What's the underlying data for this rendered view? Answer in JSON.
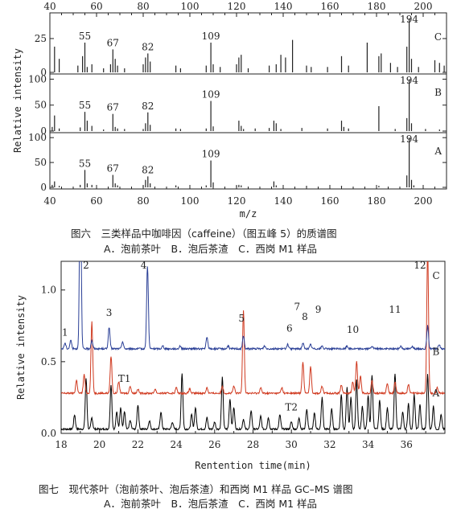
{
  "figure6": {
    "caption_line1": "图六　三类样品中咖啡因（caffeine）（图五峰 5）的质谱图",
    "caption_line2": "A．泡前茶叶　B．泡后茶渣　C．西岗 M1 样品",
    "chart_data": {
      "type": "bar",
      "title": "",
      "xlabel": "m/z",
      "ylabel": "Relative intensity",
      "xlim": [
        40,
        210
      ],
      "x_ticks": [
        "40",
        "60",
        "80",
        "100",
        "120",
        "140",
        "160",
        "180",
        "200"
      ],
      "panels": [
        {
          "name": "C",
          "ylim": [
            0,
            44
          ],
          "y_ticks": [
            "0",
            "25"
          ],
          "peaks": [
            [
              42,
              19
            ],
            [
              44,
              10
            ],
            [
              52,
              5
            ],
            [
              54,
              12
            ],
            [
              55,
              22
            ],
            [
              56,
              4
            ],
            [
              58,
              6
            ],
            [
              63,
              3
            ],
            [
              66,
              6
            ],
            [
              67,
              17
            ],
            [
              68,
              10
            ],
            [
              69,
              5
            ],
            [
              72,
              3
            ],
            [
              80,
              6
            ],
            [
              81,
              11
            ],
            [
              82,
              14
            ],
            [
              83,
              8
            ],
            [
              94,
              5
            ],
            [
              96,
              3
            ],
            [
              107,
              5
            ],
            [
              109,
              22
            ],
            [
              110,
              6
            ],
            [
              113,
              4
            ],
            [
              120,
              6
            ],
            [
              121,
              11
            ],
            [
              122,
              13
            ],
            [
              125,
              3
            ],
            [
              134,
              5
            ],
            [
              137,
              6
            ],
            [
              139,
              13
            ],
            [
              141,
              11
            ],
            [
              144,
              24
            ],
            [
              150,
              5
            ],
            [
              152,
              4
            ],
            [
              159,
              4
            ],
            [
              165,
              12
            ],
            [
              168,
              5
            ],
            [
              176,
              22
            ],
            [
              181,
              12
            ],
            [
              182,
              14
            ],
            [
              186,
              7
            ],
            [
              189,
              4
            ],
            [
              193,
              19
            ],
            [
              194,
              40
            ],
            [
              195,
              10
            ],
            [
              198,
              4
            ],
            [
              205,
              9
            ],
            [
              207,
              7
            ],
            [
              209,
              5
            ]
          ],
          "peak_labels": [
            {
              "x": 55,
              "text": "55"
            },
            {
              "x": 67,
              "text": "67"
            },
            {
              "x": 82,
              "text": "82"
            },
            {
              "x": 109,
              "text": "109"
            },
            {
              "x": 194,
              "text": "194"
            }
          ]
        },
        {
          "name": "B",
          "ylim": [
            0,
            110
          ],
          "y_ticks": [
            "0",
            "50",
            "100"
          ],
          "peaks": [
            [
              41,
              8
            ],
            [
              42,
              30
            ],
            [
              44,
              5
            ],
            [
              53,
              7
            ],
            [
              55,
              37
            ],
            [
              56,
              20
            ],
            [
              58,
              10
            ],
            [
              63,
              3
            ],
            [
              67,
              33
            ],
            [
              68,
              8
            ],
            [
              69,
              5
            ],
            [
              72,
              4
            ],
            [
              80,
              4
            ],
            [
              81,
              15
            ],
            [
              82,
              36
            ],
            [
              83,
              12
            ],
            [
              94,
              5
            ],
            [
              96,
              4
            ],
            [
              107,
              5
            ],
            [
              109,
              58
            ],
            [
              110,
              9
            ],
            [
              121,
              20
            ],
            [
              122,
              10
            ],
            [
              123,
              4
            ],
            [
              128,
              5
            ],
            [
              134,
              6
            ],
            [
              136,
              20
            ],
            [
              137,
              15
            ],
            [
              139,
              4
            ],
            [
              148,
              6
            ],
            [
              159,
              5
            ],
            [
              165,
              20
            ],
            [
              166,
              8
            ],
            [
              168,
              5
            ],
            [
              181,
              48
            ],
            [
              188,
              4
            ],
            [
              193,
              25
            ],
            [
              194,
              100
            ],
            [
              195,
              15
            ],
            [
              201,
              4
            ],
            [
              207,
              3
            ]
          ],
          "peak_labels": [
            {
              "x": 55,
              "text": "55"
            },
            {
              "x": 67,
              "text": "67"
            },
            {
              "x": 82,
              "text": "82"
            },
            {
              "x": 109,
              "text": "109"
            },
            {
              "x": 194,
              "text": "194"
            }
          ]
        },
        {
          "name": "A",
          "ylim": [
            0,
            110
          ],
          "y_ticks": [
            "0",
            "50",
            "100"
          ],
          "peaks": [
            [
              41,
              5
            ],
            [
              42,
              12
            ],
            [
              44,
              3
            ],
            [
              53,
              5
            ],
            [
              55,
              35
            ],
            [
              56,
              8
            ],
            [
              58,
              5
            ],
            [
              67,
              25
            ],
            [
              68,
              8
            ],
            [
              69,
              4
            ],
            [
              80,
              4
            ],
            [
              81,
              15
            ],
            [
              82,
              22
            ],
            [
              83,
              8
            ],
            [
              94,
              4
            ],
            [
              107,
              4
            ],
            [
              109,
              54
            ],
            [
              110,
              10
            ],
            [
              120,
              3
            ],
            [
              121,
              5
            ],
            [
              122,
              4
            ],
            [
              136,
              12
            ],
            [
              137,
              4
            ],
            [
              150,
              3
            ],
            [
              165,
              3
            ],
            [
              181,
              3
            ],
            [
              193,
              24
            ],
            [
              194,
              100
            ],
            [
              195,
              15
            ],
            [
              196,
              4
            ]
          ],
          "peak_labels": [
            {
              "x": 55,
              "text": "55"
            },
            {
              "x": 67,
              "text": "67"
            },
            {
              "x": 82,
              "text": "82"
            },
            {
              "x": 109,
              "text": "109"
            },
            {
              "x": 194,
              "text": "194"
            }
          ]
        }
      ]
    }
  },
  "figure7": {
    "caption_line1": "图七　现代茶叶（泡前茶叶、泡后茶渣）和西岗 M1 样品 GC–MS 谱图",
    "caption_line2": "A．泡前茶叶　B．泡后茶渣　C．西岗 M1 样品",
    "chart_data": {
      "type": "line",
      "title": "",
      "xlabel": "Rentention time(min)",
      "ylabel": "Relative intensity",
      "xlim": [
        18,
        38
      ],
      "ylim": [
        0,
        1.2
      ],
      "x_ticks": [
        "18",
        "20",
        "22",
        "24",
        "26",
        "28",
        "30",
        "32",
        "34",
        "36"
      ],
      "y_ticks": [
        "0.0",
        "0.5",
        "1.0"
      ],
      "series": [
        {
          "name": "A",
          "color": "#000000",
          "baseline": 0.03,
          "peaks": [
            [
              18.7,
              0.1
            ],
            [
              19.3,
              0.35
            ],
            [
              19.6,
              0.08
            ],
            [
              20.6,
              0.31
            ],
            [
              20.9,
              0.12
            ],
            [
              21.1,
              0.15
            ],
            [
              21.3,
              0.12
            ],
            [
              21.6,
              0.06
            ],
            [
              22.0,
              0.17
            ],
            [
              22.6,
              0.06
            ],
            [
              23.2,
              0.12
            ],
            [
              23.8,
              0.05
            ],
            [
              24.3,
              0.39
            ],
            [
              24.8,
              0.1
            ],
            [
              25.0,
              0.15
            ],
            [
              25.6,
              0.08
            ],
            [
              26.0,
              0.05
            ],
            [
              26.4,
              0.36
            ],
            [
              26.8,
              0.21
            ],
            [
              27.0,
              0.15
            ],
            [
              27.5,
              0.07
            ],
            [
              27.9,
              0.13
            ],
            [
              28.4,
              0.09
            ],
            [
              28.8,
              0.08
            ],
            [
              29.4,
              0.1
            ],
            [
              30.0,
              0.05
            ],
            [
              30.4,
              0.08
            ],
            [
              30.8,
              0.14
            ],
            [
              31.2,
              0.11
            ],
            [
              31.6,
              0.22
            ],
            [
              32.1,
              0.14
            ],
            [
              32.6,
              0.24
            ],
            [
              32.9,
              0.29
            ],
            [
              33.1,
              0.22
            ],
            [
              33.4,
              0.34
            ],
            [
              33.7,
              0.16
            ],
            [
              34.0,
              0.23
            ],
            [
              34.2,
              0.38
            ],
            [
              34.6,
              0.2
            ],
            [
              35.0,
              0.15
            ],
            [
              35.4,
              0.39
            ],
            [
              35.8,
              0.12
            ],
            [
              36.1,
              0.18
            ],
            [
              36.4,
              0.24
            ],
            [
              36.7,
              0.17
            ],
            [
              37.1,
              0.38
            ],
            [
              37.4,
              0.16
            ],
            [
              37.8,
              0.1
            ]
          ]
        },
        {
          "name": "B",
          "color": "#d03a20",
          "baseline": 0.28,
          "peaks": [
            [
              18.8,
              0.09
            ],
            [
              19.2,
              0.13
            ],
            [
              19.6,
              0.5
            ],
            [
              20.6,
              0.26
            ],
            [
              21.0,
              0.08
            ],
            [
              21.6,
              0.05
            ],
            [
              22.0,
              0.03
            ],
            [
              22.9,
              0.03
            ],
            [
              24.0,
              0.04
            ],
            [
              24.7,
              0.03
            ],
            [
              25.6,
              0.04
            ],
            [
              26.4,
              0.05
            ],
            [
              27.0,
              0.05
            ],
            [
              27.5,
              0.58
            ],
            [
              28.4,
              0.04
            ],
            [
              29.5,
              0.04
            ],
            [
              30.6,
              0.22
            ],
            [
              31.0,
              0.19
            ],
            [
              31.6,
              0.05
            ],
            [
              32.6,
              0.06
            ],
            [
              33.2,
              0.08
            ],
            [
              33.4,
              0.22
            ],
            [
              33.6,
              0.12
            ],
            [
              34.2,
              0.09
            ],
            [
              35.0,
              0.07
            ],
            [
              35.4,
              0.08
            ],
            [
              36.1,
              0.06
            ],
            [
              37.1,
              1.01
            ],
            [
              37.6,
              0.04
            ]
          ]
        },
        {
          "name": "C",
          "color": "#2a3f96",
          "baseline": 0.59,
          "peaks": [
            [
              18.2,
              0.04
            ],
            [
              18.5,
              0.06
            ],
            [
              19.0,
              1.22
            ],
            [
              19.6,
              0.06
            ],
            [
              20.5,
              0.15
            ],
            [
              21.2,
              0.05
            ],
            [
              22.5,
              0.58
            ],
            [
              23.3,
              0.02
            ],
            [
              24.2,
              0.02
            ],
            [
              25.6,
              0.08
            ],
            [
              26.7,
              0.02
            ],
            [
              27.5,
              0.09
            ],
            [
              28.6,
              0.02
            ],
            [
              29.8,
              0.03
            ],
            [
              30.6,
              0.04
            ],
            [
              31.0,
              0.03
            ],
            [
              31.6,
              0.02
            ],
            [
              32.9,
              0.02
            ],
            [
              34.2,
              0.02
            ],
            [
              35.7,
              0.02
            ],
            [
              36.3,
              0.02
            ],
            [
              37.1,
              0.16
            ],
            [
              37.7,
              0.03
            ]
          ]
        }
      ],
      "series_labels": [
        {
          "text": "A",
          "x": 37.35,
          "y": 0.28
        },
        {
          "text": "B",
          "x": 37.35,
          "y": 0.57
        },
        {
          "text": "C",
          "x": 37.35,
          "y": 1.1
        }
      ],
      "peak_labels": [
        {
          "text": "1",
          "x": 18.2,
          "y": 0.68
        },
        {
          "text": "2",
          "x": 19.3,
          "y": 1.15
        },
        {
          "text": "3",
          "x": 20.5,
          "y": 0.82
        },
        {
          "text": "4",
          "x": 22.3,
          "y": 1.15
        },
        {
          "text": "5",
          "x": 27.4,
          "y": 0.78
        },
        {
          "text": "6",
          "x": 29.9,
          "y": 0.71
        },
        {
          "text": "7",
          "x": 30.3,
          "y": 0.86
        },
        {
          "text": "8",
          "x": 30.7,
          "y": 0.79
        },
        {
          "text": "9",
          "x": 31.4,
          "y": 0.84
        },
        {
          "text": "10",
          "x": 33.2,
          "y": 0.7
        },
        {
          "text": "11",
          "x": 35.4,
          "y": 0.84
        },
        {
          "text": "12",
          "x": 36.7,
          "y": 1.15
        },
        {
          "text": "T1",
          "x": 21.3,
          "y": 0.36
        },
        {
          "text": "T2",
          "x": 30.0,
          "y": 0.16
        }
      ]
    }
  }
}
